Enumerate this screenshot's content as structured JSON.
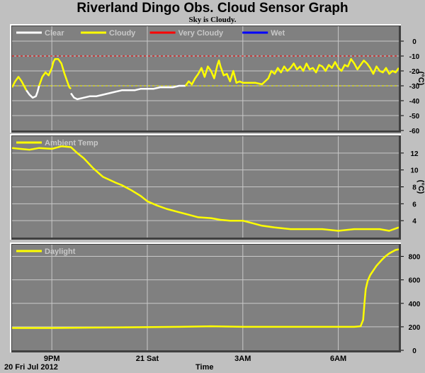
{
  "title": "Riverland Dingo Obs. Cloud Sensor Graph",
  "subtitle": "Sky is Cloudy.",
  "date_label": "20 Fri Jul 2012",
  "xlabel": "Time",
  "colors": {
    "background": "#c0c0c0",
    "plot_bg": "#808080",
    "grid": "#c8c8c8",
    "line": "#ffff00",
    "clear": "#ffffff",
    "very_cloudy": "#ff0000",
    "wet": "#0000ff"
  },
  "chart_data": [
    {
      "type": "line",
      "id": "cloud",
      "ylabel": "(°C)",
      "ylim": [
        -60,
        10
      ],
      "yticks": [
        0,
        -10,
        -20,
        -30,
        -40,
        -50,
        -60
      ],
      "xticks": [
        {
          "label": "9PM",
          "x": 21.0
        },
        {
          "label": "21 Sat",
          "x": 24.0
        },
        {
          "label": "3AM",
          "x": 27.0
        },
        {
          "label": "6AM",
          "x": 30.0
        }
      ],
      "xlim": [
        19.75,
        31.9
      ],
      "legend": [
        {
          "name": "Clear",
          "color": "#ffffff"
        },
        {
          "name": "Cloudy",
          "color": "#ffff00"
        },
        {
          "name": "Very Cloudy",
          "color": "#ff0000"
        },
        {
          "name": "Wet",
          "color": "#0000ff"
        }
      ],
      "thresholds": [
        {
          "y": -10,
          "color": "#ff0000"
        },
        {
          "y": -30,
          "color": "#ffff00"
        }
      ],
      "series": [
        {
          "color": "#ffff00",
          "x": [
            19.75,
            19.85,
            19.95,
            20.05,
            20.15,
            20.2
          ],
          "y": [
            -31,
            -27,
            -24,
            -27,
            -31,
            -33
          ]
        },
        {
          "color": "#ffffff",
          "x": [
            20.2,
            20.3,
            20.4,
            20.5,
            20.55,
            20.6
          ],
          "y": [
            -33,
            -36,
            -38,
            -37,
            -34,
            -30
          ]
        },
        {
          "color": "#ffff00",
          "x": [
            20.6,
            20.7,
            20.8,
            20.9,
            21.0,
            21.05,
            21.1,
            21.2,
            21.3,
            21.4,
            21.5,
            21.55,
            21.6
          ],
          "y": [
            -30,
            -24,
            -21,
            -23,
            -18,
            -14,
            -12,
            -12,
            -15,
            -22,
            -28,
            -31,
            -32
          ]
        },
        {
          "color": "#ffffff",
          "x": [
            21.6,
            21.7,
            21.8,
            22.0,
            22.2,
            22.4,
            22.6,
            22.8,
            23.0,
            23.2,
            23.4,
            23.6,
            23.8,
            24.0,
            24.2,
            24.4,
            24.6,
            24.8,
            25.0,
            25.2
          ],
          "y": [
            -35,
            -38,
            -39,
            -38,
            -37,
            -37,
            -36,
            -35,
            -34,
            -33,
            -33,
            -33,
            -32,
            -32,
            -32,
            -31,
            -31,
            -31,
            -30,
            -30
          ]
        },
        {
          "color": "#ffff00",
          "x": [
            25.2,
            25.3,
            25.4,
            25.5,
            25.6,
            25.7,
            25.75,
            25.8,
            25.9,
            26.0,
            26.1,
            26.2,
            26.25,
            26.3,
            26.4,
            26.5,
            26.6,
            26.7,
            26.8,
            26.9,
            27.0,
            27.2,
            27.4,
            27.6,
            27.8,
            27.9,
            28.0,
            28.1,
            28.2,
            28.3,
            28.4,
            28.5,
            28.6,
            28.7,
            28.8,
            28.9,
            29.0,
            29.1,
            29.2,
            29.3,
            29.4,
            29.5,
            29.6,
            29.7,
            29.8,
            29.9,
            30.0,
            30.1,
            30.2,
            30.3,
            30.4,
            30.5,
            30.6,
            30.7,
            30.8,
            30.9,
            31.0,
            31.1,
            31.2,
            31.3,
            31.4,
            31.5,
            31.6,
            31.7,
            31.8,
            31.9
          ],
          "y": [
            -30,
            -27,
            -29,
            -25,
            -22,
            -18,
            -21,
            -24,
            -17,
            -20,
            -25,
            -16,
            -13,
            -17,
            -23,
            -22,
            -27,
            -20,
            -28,
            -27,
            -28,
            -28,
            -28,
            -29,
            -25,
            -20,
            -22,
            -18,
            -21,
            -17,
            -20,
            -18,
            -15,
            -19,
            -17,
            -20,
            -15,
            -19,
            -18,
            -21,
            -16,
            -17,
            -20,
            -16,
            -18,
            -14,
            -18,
            -20,
            -16,
            -17,
            -12,
            -15,
            -19,
            -16,
            -13,
            -15,
            -18,
            -22,
            -17,
            -20,
            -21,
            -18,
            -22,
            -20,
            -21,
            -18
          ]
        }
      ]
    },
    {
      "type": "line",
      "id": "ambient",
      "ylabel": "(°C)",
      "ylim": [
        2,
        14
      ],
      "yticks": [
        4,
        6,
        8,
        10,
        12
      ],
      "xticks": [
        {
          "label": "9PM",
          "x": 21.0
        },
        {
          "label": "21 Sat",
          "x": 24.0
        },
        {
          "label": "3AM",
          "x": 27.0
        },
        {
          "label": "6AM",
          "x": 30.0
        }
      ],
      "xlim": [
        19.75,
        31.9
      ],
      "legend": [
        {
          "name": "Ambient Temp",
          "color": "#ffff00"
        }
      ],
      "series": [
        {
          "color": "#ffff00",
          "x": [
            19.75,
            20.0,
            20.3,
            20.6,
            21.0,
            21.3,
            21.6,
            21.8,
            22.0,
            22.3,
            22.6,
            23.0,
            23.2,
            23.5,
            23.8,
            24.0,
            24.3,
            24.6,
            25.0,
            25.3,
            25.6,
            26.0,
            26.3,
            26.6,
            27.0,
            27.3,
            27.6,
            28.0,
            28.5,
            29.0,
            29.5,
            30.0,
            30.5,
            31.0,
            31.3,
            31.6,
            31.9
          ],
          "y": [
            12.6,
            12.5,
            12.4,
            12.6,
            12.5,
            12.8,
            12.7,
            12.0,
            11.4,
            10.2,
            9.2,
            8.5,
            8.2,
            7.6,
            6.9,
            6.3,
            5.8,
            5.4,
            5.0,
            4.7,
            4.4,
            4.3,
            4.1,
            4.0,
            4.0,
            3.7,
            3.4,
            3.2,
            3.0,
            3.0,
            3.0,
            2.8,
            3.0,
            3.0,
            3.0,
            2.8,
            3.2
          ]
        }
      ]
    },
    {
      "type": "line",
      "id": "daylight",
      "ylabel": "",
      "ylim": [
        0,
        900
      ],
      "yticks": [
        0,
        200,
        400,
        600,
        800
      ],
      "xticks": [
        {
          "label": "9PM",
          "x": 21.0
        },
        {
          "label": "21 Sat",
          "x": 24.0
        },
        {
          "label": "3AM",
          "x": 27.0
        },
        {
          "label": "6AM",
          "x": 30.0
        }
      ],
      "xlim": [
        19.75,
        31.9
      ],
      "legend": [
        {
          "name": "Daylight",
          "color": "#ffff00"
        }
      ],
      "series": [
        {
          "color": "#ffff00",
          "x": [
            19.75,
            21.0,
            23.0,
            25.0,
            26.0,
            27.0,
            28.0,
            29.0,
            30.0,
            30.5,
            30.7,
            30.78,
            30.82,
            30.86,
            30.92,
            31.0,
            31.1,
            31.2,
            31.3,
            31.4,
            31.5,
            31.6,
            31.7,
            31.8,
            31.9
          ],
          "y": [
            190,
            190,
            195,
            200,
            205,
            200,
            200,
            200,
            200,
            200,
            205,
            260,
            400,
            520,
            590,
            640,
            680,
            720,
            750,
            780,
            805,
            825,
            840,
            855,
            860
          ]
        }
      ]
    }
  ]
}
